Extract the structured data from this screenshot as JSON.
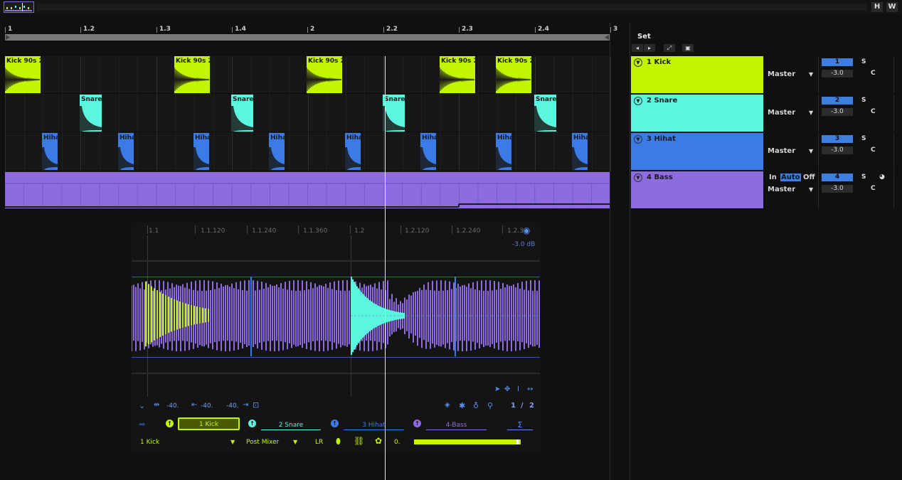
{
  "window": {
    "buttons": {
      "h": "H",
      "w": "W"
    }
  },
  "ruler": {
    "labels": [
      "1",
      "1.2",
      "1.3",
      "1.4",
      "2",
      "2.2",
      "2.3",
      "2.4",
      "3"
    ]
  },
  "colors": {
    "kick": "#c3f500",
    "snare": "#5cf5e0",
    "hihat": "#3a7be8",
    "bass": "#8e6ce0",
    "accent": "#3e7ee0"
  },
  "clips": {
    "kick_title": "Kick 90s 2",
    "snare_title": "Snare",
    "hihat_title": "Hihat"
  },
  "set": {
    "label": "Set",
    "icons": [
      "arrow-left-icon",
      "arrow-right-icon",
      "expand-icon",
      "lock-icon"
    ]
  },
  "tracks": [
    {
      "name": "1 Kick",
      "output": "Master",
      "number": "1",
      "volume": "-3.0",
      "solo": "S",
      "pan": "C"
    },
    {
      "name": "2 Snare",
      "output": "Master",
      "number": "2",
      "volume": "-3.0",
      "solo": "S",
      "pan": "C"
    },
    {
      "name": "3 Hihat",
      "output": "Master",
      "number": "3",
      "volume": "-3.0",
      "solo": "S",
      "pan": "C"
    },
    {
      "name": "4 Bass",
      "output": "Master",
      "number": "4",
      "volume": "-3.0",
      "solo": "S",
      "pan": "C",
      "monitor": {
        "in": "In",
        "auto": "Auto",
        "off": "Off"
      }
    }
  ],
  "detail": {
    "ruler_labels": [
      "1.1",
      "1.1.120",
      "1.1.240",
      "1.1.360",
      "1.2",
      "1.2.120",
      "1.2.240",
      "1.2.3"
    ],
    "gain_label": "-3.0 dB",
    "params": [
      "-40.",
      "-40.",
      "-40."
    ],
    "page": {
      "current": "1",
      "separator": "/",
      "total": "2"
    },
    "sends": [
      "1 Kick",
      "2 Snare",
      "3 Hihat",
      "4-Bass",
      "Σ"
    ],
    "source": "1 Kick",
    "tap": "Post Mixer",
    "channel": "LR",
    "value": "0."
  }
}
